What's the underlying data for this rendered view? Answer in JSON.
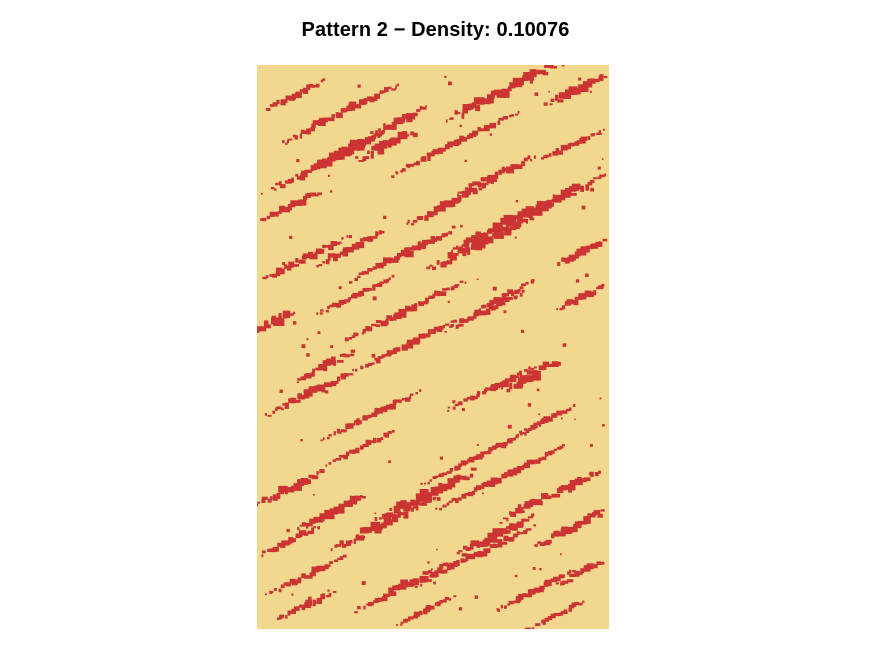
{
  "chart_data": {
    "type": "heatmap",
    "title": "Pattern 2 − Density: 0.10076",
    "density": 0.10076,
    "xlabel": "",
    "ylabel": "",
    "grid": false,
    "legend": "none",
    "colors": {
      "background": "#F2D88E",
      "filled": "#CC3333"
    },
    "description_of_cells": "binary pattern of diagonal streaks, filled cells in red on pale yellow background"
  }
}
